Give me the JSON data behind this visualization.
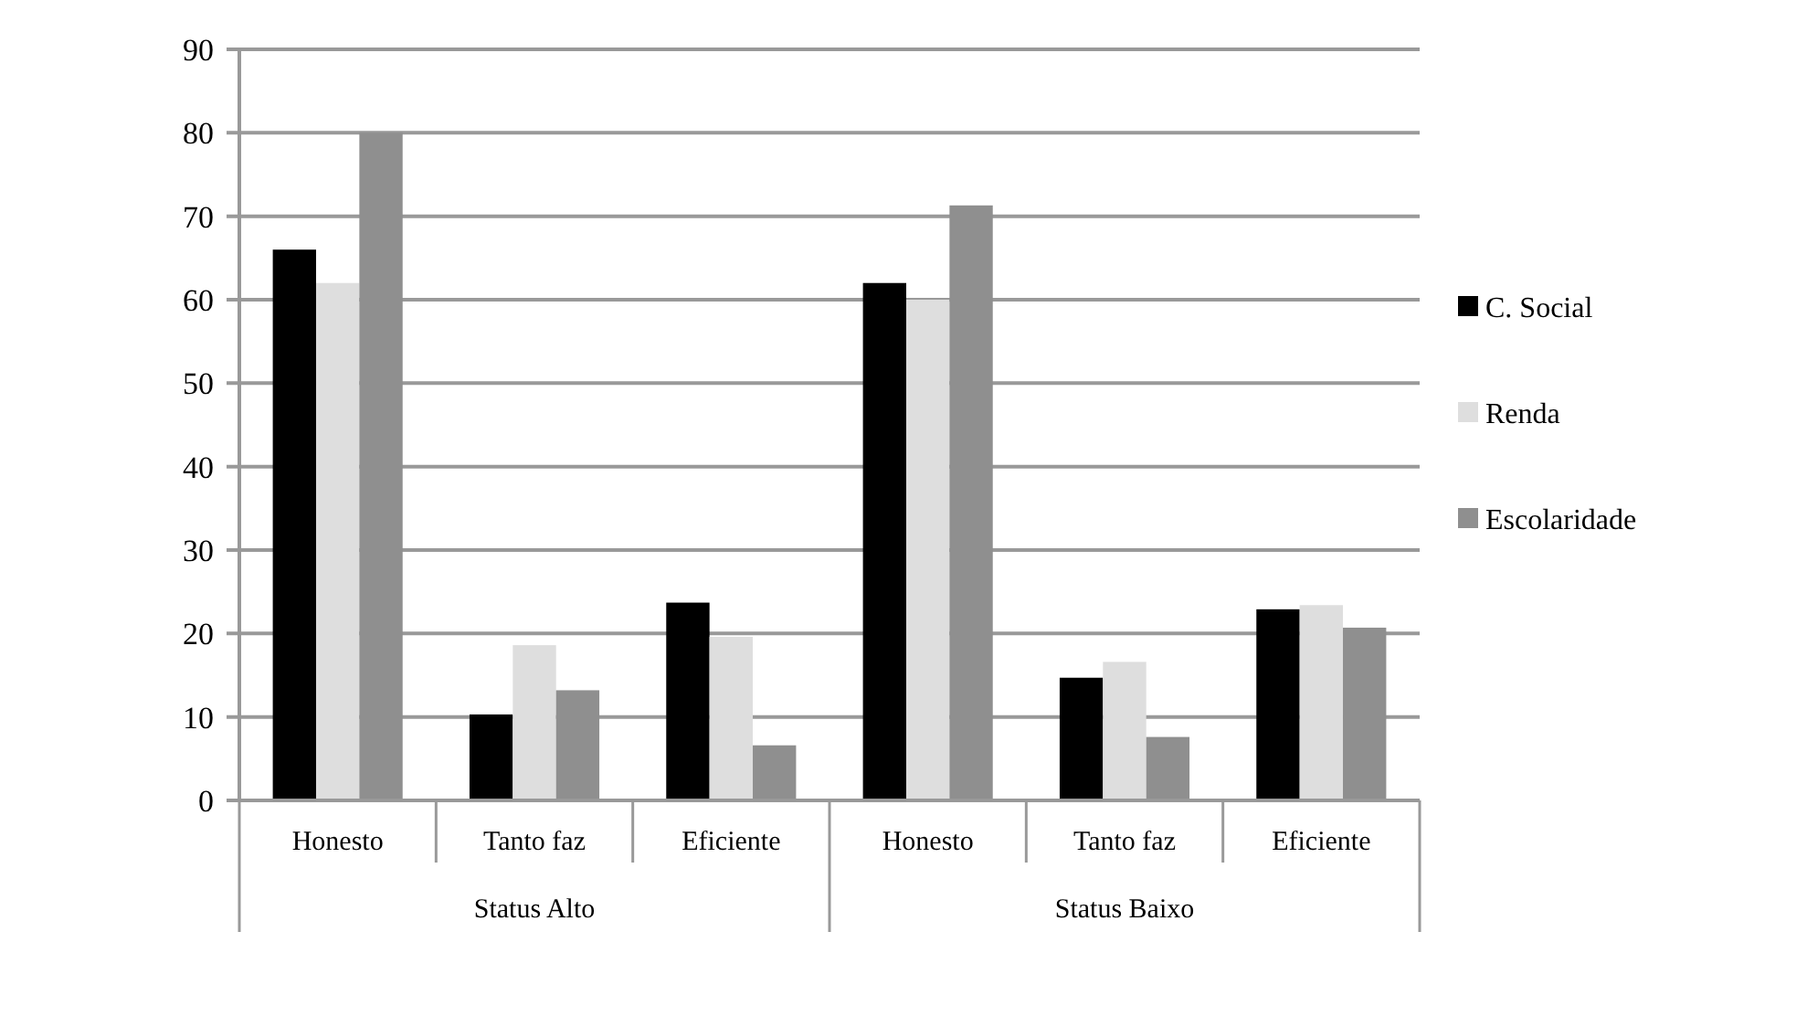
{
  "chart_data": {
    "type": "bar",
    "categories": [
      "Honesto",
      "Tanto faz",
      "Eficiente",
      "Honesto",
      "Tanto faz",
      "Eficiente"
    ],
    "series": [
      {
        "name": "C. Social",
        "color": "#000000",
        "values": [
          66,
          10.3,
          23.7,
          62,
          14.7,
          22.9
        ]
      },
      {
        "name": "Renda",
        "color": "#dedede",
        "values": [
          62,
          18.6,
          19.6,
          60,
          16.6,
          23.4
        ]
      },
      {
        "name": "Escolaridade",
        "color": "#8f8f8f",
        "values": [
          80,
          13.2,
          6.6,
          71.3,
          7.6,
          20.7
        ]
      }
    ],
    "annotations": [
      "Status Alto",
      "Status Baixo"
    ],
    "ylim": [
      0,
      90
    ],
    "yticks": [
      0,
      10,
      20,
      30,
      40,
      50,
      60,
      70,
      80,
      90
    ],
    "grid": "y",
    "legend": "right"
  }
}
